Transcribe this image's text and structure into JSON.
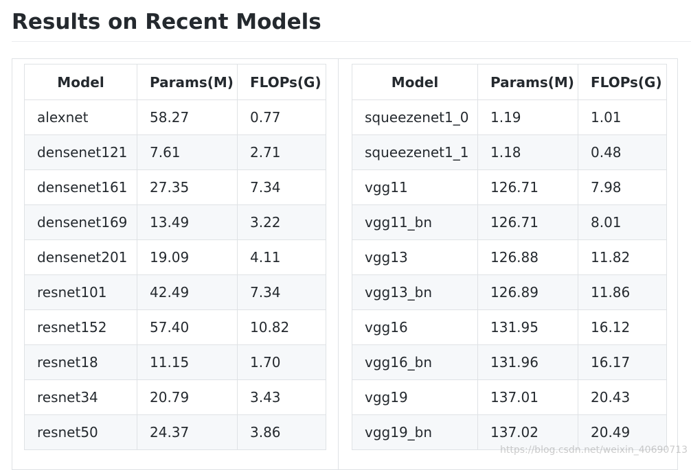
{
  "page_title": "Results on Recent Models",
  "tables": {
    "left": {
      "headers": [
        "Model",
        "Params(M)",
        "FLOPs(G)"
      ],
      "rows": [
        [
          "alexnet",
          "58.27",
          "0.77"
        ],
        [
          "densenet121",
          "7.61",
          "2.71"
        ],
        [
          "densenet161",
          "27.35",
          "7.34"
        ],
        [
          "densenet169",
          "13.49",
          "3.22"
        ],
        [
          "densenet201",
          "19.09",
          "4.11"
        ],
        [
          "resnet101",
          "42.49",
          "7.34"
        ],
        [
          "resnet152",
          "57.40",
          "10.82"
        ],
        [
          "resnet18",
          "11.15",
          "1.70"
        ],
        [
          "resnet34",
          "20.79",
          "3.43"
        ],
        [
          "resnet50",
          "24.37",
          "3.86"
        ]
      ]
    },
    "right": {
      "headers": [
        "Model",
        "Params(M)",
        "FLOPs(G)"
      ],
      "rows": [
        [
          "squeezenet1_0",
          "1.19",
          "1.01"
        ],
        [
          "squeezenet1_1",
          "1.18",
          "0.48"
        ],
        [
          "vgg11",
          "126.71",
          "7.98"
        ],
        [
          "vgg11_bn",
          "126.71",
          "8.01"
        ],
        [
          "vgg13",
          "126.88",
          "11.82"
        ],
        [
          "vgg13_bn",
          "126.89",
          "11.86"
        ],
        [
          "vgg16",
          "131.95",
          "16.12"
        ],
        [
          "vgg16_bn",
          "131.96",
          "16.17"
        ],
        [
          "vgg19",
          "137.01",
          "20.43"
        ],
        [
          "vgg19_bn",
          "137.02",
          "20.49"
        ]
      ]
    }
  },
  "watermark": "https://blog.csdn.net/weixin_40690713"
}
